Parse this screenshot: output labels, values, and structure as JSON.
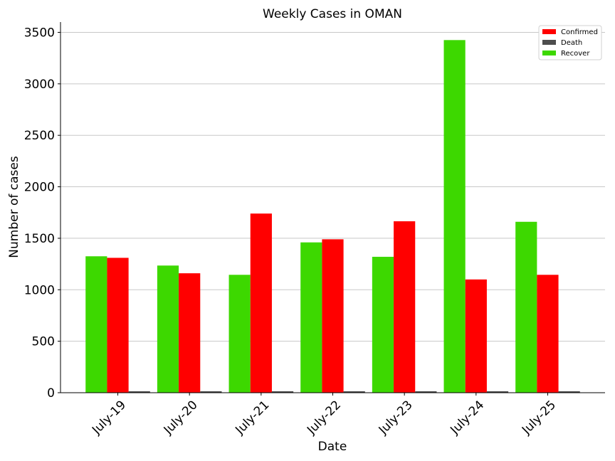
{
  "chart_data": {
    "type": "bar",
    "title": "Weekly Cases in OMAN",
    "xlabel": "Date",
    "ylabel": "Number of cases",
    "categories": [
      "July-19",
      "July-20",
      "July-21",
      "July-22",
      "July-23",
      "July-24",
      "July-25"
    ],
    "series": [
      {
        "name": "Recover",
        "color": "#3dd800",
        "values": [
          1325,
          1235,
          1145,
          1460,
          1320,
          3425,
          1660
        ]
      },
      {
        "name": "Confirmed",
        "color": "#ff0000",
        "values": [
          1310,
          1160,
          1740,
          1490,
          1665,
          1100,
          1145
        ]
      },
      {
        "name": "Death",
        "color": "#4d4d4d",
        "values": [
          12,
          11,
          7,
          11,
          11,
          7,
          7
        ]
      }
    ],
    "legend_order": [
      "Confirmed",
      "Death",
      "Recover"
    ],
    "legend_position": "top-right",
    "ylim": [
      0,
      3600
    ],
    "yticks": [
      0,
      500,
      1000,
      1500,
      2000,
      2500,
      3000,
      3500
    ],
    "grid": "horizontal"
  }
}
